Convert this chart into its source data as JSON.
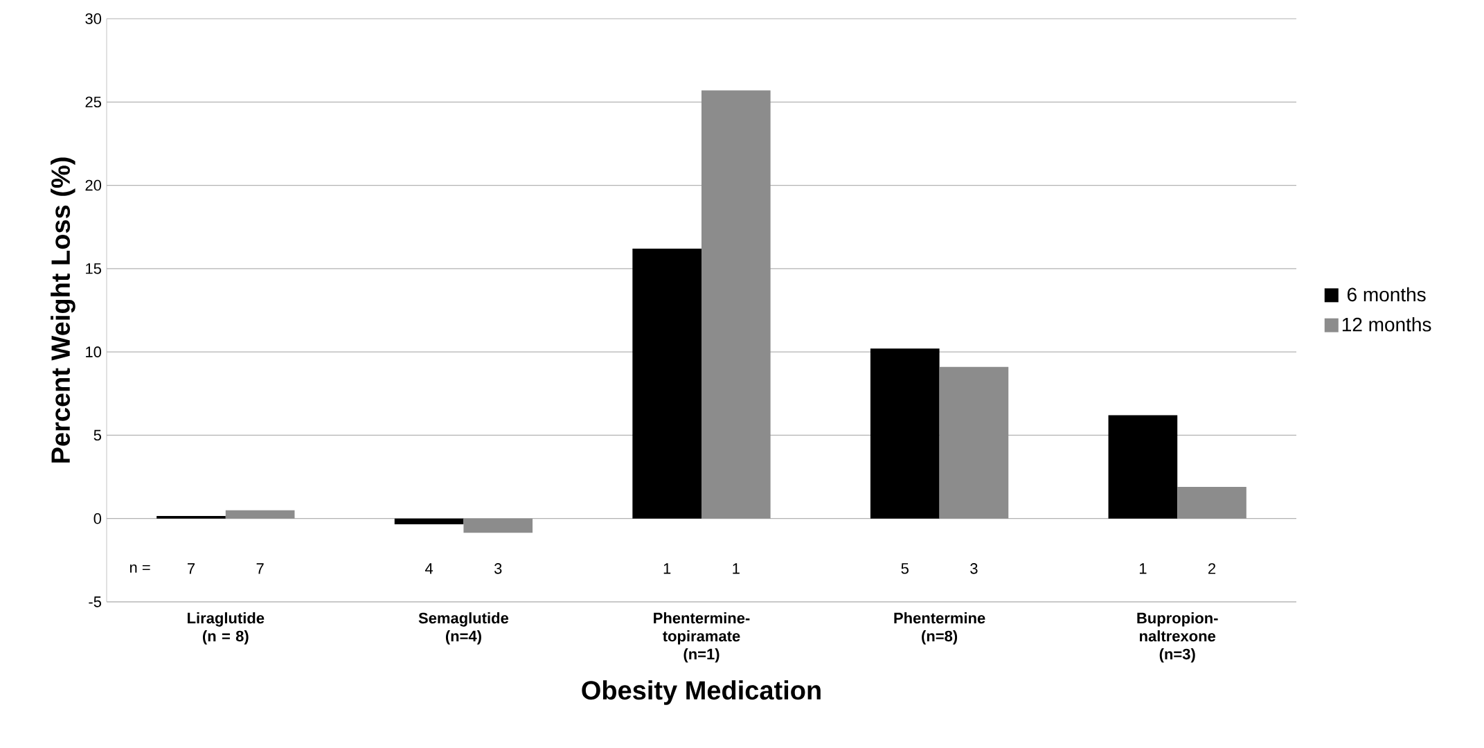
{
  "chart_data": {
    "type": "bar",
    "xlabel": "Obesity Medication",
    "ylabel": "Percent Weight Loss (%)",
    "categories": [
      "Liraglutide (n = 8)",
      "Semaglutide (n=4)",
      "Phentermine-topiramate (n=1)",
      "Phentermine (n=8)",
      "Bupropion-naltrexone (n=3)"
    ],
    "series": [
      {
        "name": "6 months",
        "color": "#000000",
        "values": [
          0.15,
          -0.35,
          16.2,
          10.2,
          6.2
        ]
      },
      {
        "name": "12 months",
        "color": "#8c8c8c",
        "values": [
          0.5,
          -0.85,
          25.7,
          9.1,
          1.9
        ]
      }
    ],
    "ylim": [
      -5,
      30
    ],
    "yticks": [
      -5,
      0,
      5,
      10,
      15,
      20,
      25,
      30
    ],
    "grid": "y",
    "legend": "right",
    "annotations": [
      "n =",
      "7",
      "7",
      "4",
      "3",
      "1",
      "1",
      "5",
      "3",
      "1",
      "2"
    ]
  }
}
